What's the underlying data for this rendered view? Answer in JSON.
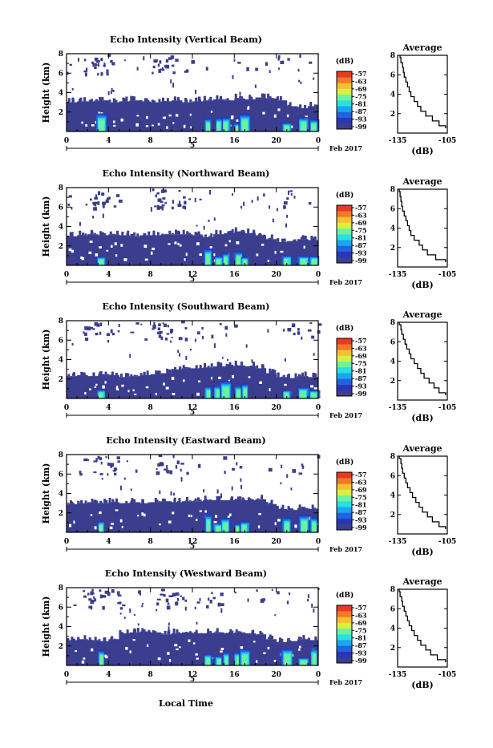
{
  "chart_data": [
    {
      "type": "heatmap",
      "title": "Echo Intensity (Vertical Beam)",
      "ylabel": "Height (km)",
      "ylim": [
        0,
        8
      ],
      "y_ticks": [
        "2",
        "4",
        "6",
        "8"
      ],
      "x_ticks": [
        "0",
        "4",
        "8",
        "12",
        "16",
        "20",
        "0"
      ],
      "xlim": [
        0,
        24
      ],
      "date_marker": "5",
      "date_suffix": "Feb 2017",
      "colorbar": {
        "unit": "(dB)",
        "ticks": [
          "-57",
          "-63",
          "-69",
          "-75",
          "-81",
          "-87",
          "-93",
          "-99"
        ]
      },
      "base_top_km": [
        3.0,
        3.1,
        3.1,
        3.2,
        3.0,
        3.1,
        3.2,
        3.1,
        3.0,
        3.1,
        3.2,
        3.0,
        3.1,
        3.2,
        3.3,
        3.2,
        3.4,
        3.3,
        3.5,
        3.4,
        3.2,
        2.6,
        2.4,
        2.6
      ],
      "average_profile": {
        "title": "Average",
        "xlabel": "(dB)",
        "xlim": [
          -135,
          -105
        ],
        "x_ticks": [
          "-135",
          "-105"
        ],
        "y_ticks": [
          "2",
          "4",
          "6",
          "8"
        ],
        "height_km": [
          0.5,
          1,
          1.5,
          2,
          2.5,
          3,
          3.5,
          4,
          4.5,
          5,
          5.5,
          6,
          6.5,
          7,
          7.5,
          8
        ],
        "db": [
          -106,
          -110,
          -114,
          -118,
          -121,
          -123,
          -125,
          -127,
          -128,
          -129,
          -130,
          -131,
          -131.5,
          -132,
          -133,
          -133.5
        ]
      }
    },
    {
      "type": "heatmap",
      "title": "Echo Intensity (Northward Beam)",
      "ylabel": "Height (km)",
      "ylim": [
        0,
        8
      ],
      "y_ticks": [
        "2",
        "4",
        "6",
        "8"
      ],
      "x_ticks": [
        "0",
        "4",
        "8",
        "12",
        "16",
        "20",
        "0"
      ],
      "xlim": [
        0,
        24
      ],
      "date_marker": "5",
      "date_suffix": "Feb 2017",
      "colorbar": {
        "unit": "(dB)",
        "ticks": [
          "-57",
          "-63",
          "-69",
          "-75",
          "-81",
          "-87",
          "-93",
          "-99"
        ]
      },
      "base_top_km": [
        3.0,
        3.1,
        3.2,
        3.1,
        3.2,
        3.1,
        3.0,
        3.1,
        3.1,
        3.2,
        3.2,
        3.2,
        3.1,
        2.9,
        3.2,
        3.3,
        3.5,
        3.3,
        3.1,
        2.7,
        2.4,
        2.5,
        2.7,
        2.6
      ],
      "average_profile": {
        "title": "Average",
        "xlabel": "(dB)",
        "xlim": [
          -135,
          -105
        ],
        "x_ticks": [
          "-135",
          "-105"
        ],
        "y_ticks": [
          "2",
          "4",
          "6",
          "8"
        ],
        "height_km": [
          0.5,
          1,
          1.5,
          2,
          2.5,
          3,
          3.5,
          4,
          4.5,
          5,
          5.5,
          6,
          6.5,
          7,
          7.5,
          8
        ],
        "db": [
          -106,
          -112,
          -117,
          -120,
          -122,
          -125,
          -127,
          -128,
          -129,
          -130,
          -131,
          -132,
          -132.5,
          -133,
          -133.5,
          -134
        ]
      }
    },
    {
      "type": "heatmap",
      "title": "Echo Intensity (Southward Beam)",
      "ylabel": "Height (km)",
      "ylim": [
        0,
        8
      ],
      "y_ticks": [
        "2",
        "4",
        "6",
        "8"
      ],
      "x_ticks": [
        "0",
        "4",
        "8",
        "12",
        "16",
        "20",
        "0"
      ],
      "xlim": [
        0,
        24
      ],
      "date_marker": "5",
      "date_suffix": "Feb 2017",
      "colorbar": {
        "unit": "(dB)",
        "ticks": [
          "-57",
          "-63",
          "-69",
          "-75",
          "-81",
          "-87",
          "-93",
          "-99"
        ]
      },
      "base_top_km": [
        2.3,
        2.4,
        2.3,
        2.5,
        2.4,
        2.2,
        2.3,
        2.4,
        2.5,
        2.6,
        3.0,
        3.1,
        3.1,
        3.2,
        3.3,
        3.3,
        3.4,
        3.3,
        3.1,
        2.6,
        2.2,
        2.1,
        2.3,
        2.2
      ],
      "average_profile": {
        "title": "Average",
        "xlabel": "(dB)",
        "xlim": [
          -135,
          -105
        ],
        "x_ticks": [
          "-135",
          "-105"
        ],
        "y_ticks": [
          "2",
          "4",
          "6",
          "8"
        ],
        "height_km": [
          0.5,
          1,
          1.5,
          2,
          2.5,
          3,
          3.5,
          4,
          4.5,
          5,
          5.5,
          6,
          6.5,
          7,
          7.5,
          8
        ],
        "db": [
          -106,
          -110,
          -113,
          -116,
          -119,
          -121,
          -123,
          -125,
          -127,
          -128,
          -129.5,
          -130.5,
          -131.5,
          -132.5,
          -133,
          -134
        ]
      }
    },
    {
      "type": "heatmap",
      "title": "Echo Intensity (Eastward Beam)",
      "ylabel": "Height (km)",
      "ylim": [
        0,
        8
      ],
      "y_ticks": [
        "2",
        "4",
        "6",
        "8"
      ],
      "x_ticks": [
        "0",
        "4",
        "8",
        "12",
        "16",
        "20",
        "0"
      ],
      "xlim": [
        0,
        24
      ],
      "date_marker": "5",
      "date_suffix": "Feb 2017",
      "colorbar": {
        "unit": "(dB)",
        "ticks": [
          "-57",
          "-63",
          "-69",
          "-75",
          "-81",
          "-87",
          "-93",
          "-99"
        ]
      },
      "base_top_km": [
        2.9,
        3.0,
        3.1,
        3.0,
        3.1,
        3.0,
        3.1,
        3.0,
        3.1,
        3.2,
        3.1,
        3.2,
        3.2,
        3.3,
        3.3,
        3.3,
        3.4,
        3.3,
        3.4,
        2.9,
        2.4,
        2.3,
        2.5,
        2.4
      ],
      "average_profile": {
        "title": "Average",
        "xlabel": "(dB)",
        "xlim": [
          -135,
          -105
        ],
        "x_ticks": [
          "-135",
          "-105"
        ],
        "y_ticks": [
          "2",
          "4",
          "6",
          "8"
        ],
        "height_km": [
          0.5,
          1,
          1.5,
          2,
          2.5,
          3,
          3.5,
          4,
          4.5,
          5,
          5.5,
          6,
          6.5,
          7,
          7.5,
          8
        ],
        "db": [
          -106,
          -110,
          -114,
          -117,
          -120,
          -122,
          -124,
          -126,
          -127.5,
          -129,
          -130,
          -131,
          -132,
          -132.5,
          -133,
          -134
        ]
      }
    },
    {
      "type": "heatmap",
      "title": "Echo Intensity (Westward Beam)",
      "ylabel": "Height (km)",
      "ylim": [
        0,
        8
      ],
      "y_ticks": [
        "2",
        "4",
        "6",
        "8"
      ],
      "x_ticks": [
        "0",
        "4",
        "8",
        "12",
        "16",
        "20",
        "0"
      ],
      "xlim": [
        0,
        24
      ],
      "date_marker": "5",
      "date_suffix": "Feb 2017",
      "colorbar": {
        "unit": "(dB)",
        "ticks": [
          "-57",
          "-63",
          "-69",
          "-75",
          "-81",
          "-87",
          "-93",
          "-99"
        ]
      },
      "base_top_km": [
        2.6,
        2.7,
        2.6,
        2.5,
        2.7,
        3.3,
        3.4,
        3.5,
        3.4,
        3.2,
        3.3,
        3.4,
        3.3,
        3.3,
        3.4,
        3.3,
        3.4,
        3.3,
        3.2,
        2.7,
        2.4,
        2.5,
        2.7,
        2.6
      ],
      "average_profile": {
        "title": "Average",
        "xlabel": "(dB)",
        "xlim": [
          -135,
          -105
        ],
        "x_ticks": [
          "-135",
          "-105"
        ],
        "y_ticks": [
          "2",
          "4",
          "6",
          "8"
        ],
        "height_km": [
          0.5,
          1,
          1.5,
          2,
          2.5,
          3,
          3.5,
          4,
          4.5,
          5,
          5.5,
          6,
          6.5,
          7,
          7.5,
          8
        ],
        "db": [
          -106,
          -111,
          -115,
          -118,
          -121,
          -123,
          -125,
          -126.5,
          -128,
          -129,
          -130,
          -131,
          -132,
          -132.5,
          -133.5,
          -134
        ]
      }
    }
  ],
  "footer": {
    "xlabel": "Local Time"
  },
  "colors": {
    "colorbar": [
      "#3d3d8f",
      "#2b35b8",
      "#1f63e0",
      "#19a6f0",
      "#27e0e0",
      "#6cf2a0",
      "#d8f040",
      "#f6c030",
      "#f07a28",
      "#e83a22"
    ],
    "base": "#3b3d8e",
    "high": "#3a4fa0"
  }
}
